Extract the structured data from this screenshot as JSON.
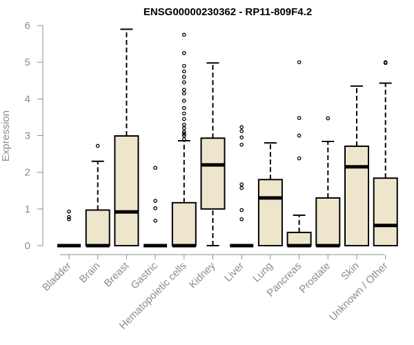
{
  "chart_data": {
    "type": "boxplot",
    "title": "ENSG00000230362 - RP11-809F4.2",
    "xlabel": "",
    "ylabel": "Expression",
    "ylim": [
      0,
      6
    ],
    "yticks": [
      "0",
      "1",
      "2",
      "3",
      "4",
      "5",
      "6"
    ],
    "grid": false,
    "legend": "none",
    "colors": {
      "box_fill": "#ede6cd",
      "line": "#000000",
      "axis_text": "#8c8c8c"
    },
    "categories": [
      "Bladder",
      "Brain",
      "Breast",
      "Gastric",
      "Hematopoietic cells",
      "Kidney",
      "Liver",
      "Lung",
      "Pancreas",
      "Prostate",
      "Skin",
      "Unknown / Other"
    ],
    "boxes": [
      {
        "name": "Bladder",
        "whisker_low": 0,
        "q1": 0,
        "median": 0,
        "q3": 0,
        "whisker_high": 0,
        "outliers": [
          0.72,
          0.78,
          0.93
        ]
      },
      {
        "name": "Brain",
        "whisker_low": 0,
        "q1": 0,
        "median": 0,
        "q3": 0.97,
        "whisker_high": 2.3,
        "outliers": [
          2.72
        ]
      },
      {
        "name": "Breast",
        "whisker_low": 0,
        "q1": 0,
        "median": 0.92,
        "q3": 2.99,
        "whisker_high": 5.9,
        "outliers": []
      },
      {
        "name": "Gastric",
        "whisker_low": 0,
        "q1": 0,
        "median": 0,
        "q3": 0,
        "whisker_high": 0,
        "outliers": [
          0.68,
          1.02,
          1.22,
          2.12
        ]
      },
      {
        "name": "Hematopoietic cells",
        "whisker_low": 0,
        "q1": 0,
        "median": 0,
        "q3": 1.17,
        "whisker_high": 2.86,
        "outliers": [
          2.9,
          3.0,
          3.05,
          3.1,
          3.2,
          3.3,
          3.45,
          3.6,
          3.75,
          3.95,
          4.15,
          4.25,
          4.45,
          4.6,
          4.75,
          4.9,
          5.25,
          5.75
        ]
      },
      {
        "name": "Kidney",
        "whisker_low": 0,
        "q1": 1.0,
        "median": 2.2,
        "q3": 2.93,
        "whisker_high": 4.98,
        "outliers": []
      },
      {
        "name": "Liver",
        "whisker_low": 0,
        "q1": 0,
        "median": 0,
        "q3": 0,
        "whisker_high": 0,
        "outliers": [
          0.72,
          0.97,
          1.57,
          1.67,
          2.75,
          2.95,
          3.12,
          3.23
        ]
      },
      {
        "name": "Lung",
        "whisker_low": 0,
        "q1": 0,
        "median": 1.3,
        "q3": 1.8,
        "whisker_high": 2.8,
        "outliers": []
      },
      {
        "name": "Pancreas",
        "whisker_low": 0,
        "q1": 0,
        "median": 0,
        "q3": 0.36,
        "whisker_high": 0.83,
        "outliers": [
          2.38,
          3.0,
          3.48,
          5.0
        ]
      },
      {
        "name": "Prostate",
        "whisker_low": 0,
        "q1": 0,
        "median": 0,
        "q3": 1.3,
        "whisker_high": 2.84,
        "outliers": [
          3.47
        ]
      },
      {
        "name": "Skin",
        "whisker_low": 0,
        "q1": 0,
        "median": 2.15,
        "q3": 2.71,
        "whisker_high": 4.35,
        "outliers": []
      },
      {
        "name": "Unknown / Other",
        "whisker_low": 0,
        "q1": 0,
        "median": 0.55,
        "q3": 1.84,
        "whisker_high": 4.43,
        "outliers": [
          4.98,
          5.0
        ]
      }
    ]
  }
}
